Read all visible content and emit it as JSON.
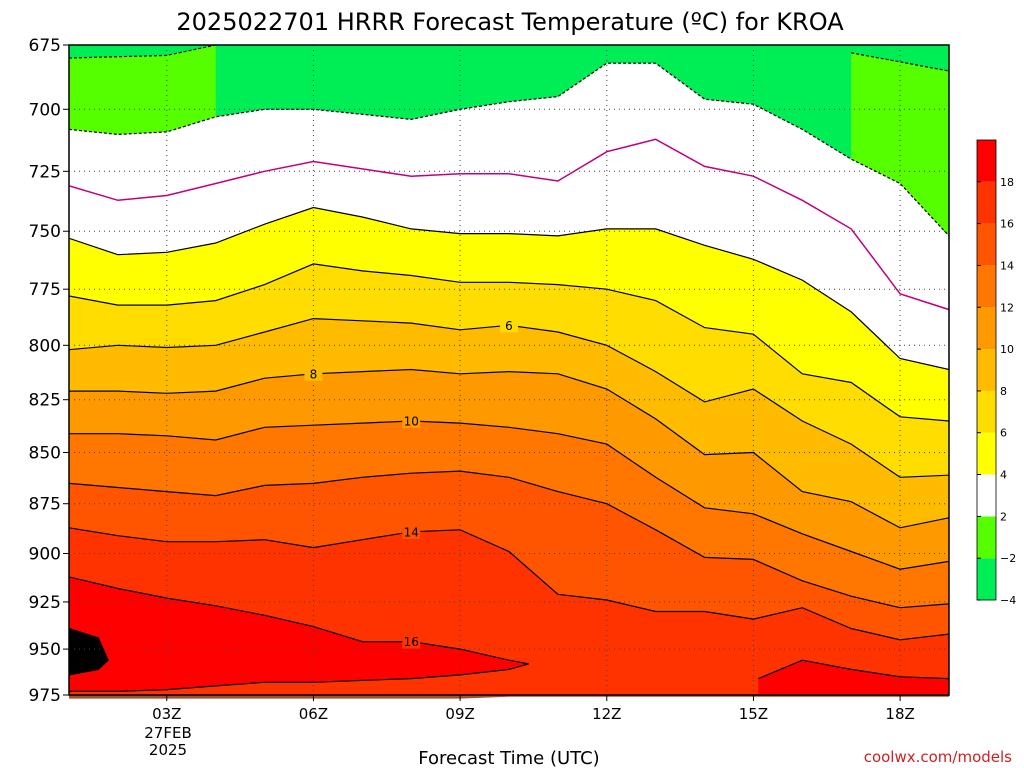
{
  "chart_data": {
    "type": "heatmap",
    "title": "2025022701 HRRR Forecast Temperature (ºC) for KROA",
    "xlabel": "Forecast Time (UTC)",
    "ylabel": "",
    "credit": "coolwx.com/models",
    "x_ticks": [
      {
        "hour": 3,
        "label": "03Z"
      },
      {
        "hour": 6,
        "label": "06Z"
      },
      {
        "hour": 9,
        "label": "09Z"
      },
      {
        "hour": 12,
        "label": "12Z"
      },
      {
        "hour": 15,
        "label": "15Z"
      },
      {
        "hour": 18,
        "label": "18Z"
      }
    ],
    "date_label": [
      "27FEB",
      "2025"
    ],
    "xlim": [
      1,
      19
    ],
    "y_ticks": [
      675,
      700,
      725,
      750,
      775,
      800,
      825,
      850,
      875,
      900,
      925,
      950,
      975
    ],
    "ylim": [
      975,
      675
    ],
    "y_scale": "log-pressure",
    "grid": true,
    "colorbar": {
      "position": "right",
      "bounds": [
        -6,
        -4,
        -2,
        2,
        4,
        6,
        8,
        10,
        12,
        14,
        16,
        18,
        20
      ],
      "labels": [
        "18",
        "16",
        "14",
        "12",
        "10",
        "8",
        "6",
        "4",
        "2",
        "−2",
        "−4"
      ],
      "colors": [
        "#00ee55",
        "#55ff00",
        "#ffffff",
        "#ffff00",
        "#ffdd00",
        "#ffbb00",
        "#ff9900",
        "#ff7700",
        "#ff5500",
        "#ff3300",
        "#ff0000"
      ]
    },
    "isotherm_colors": {
      "zero": "#c0007f",
      "line": "#000000"
    },
    "ground_color": "#a0522d",
    "contours": [
      {
        "level": -4,
        "style": "dashed",
        "points": [
          [
            1,
            680
          ],
          [
            3,
            679
          ],
          [
            4,
            675
          ]
        ]
      },
      {
        "level": -4,
        "style": "dashed",
        "points": [
          [
            17,
            678
          ],
          [
            19,
            685
          ]
        ]
      },
      {
        "level": -2,
        "style": "dashed",
        "points": [
          [
            1,
            708
          ],
          [
            2,
            710
          ],
          [
            3,
            709
          ],
          [
            4,
            703
          ],
          [
            5,
            700
          ],
          [
            6,
            700
          ],
          [
            7,
            702
          ],
          [
            8,
            704
          ],
          [
            9,
            700
          ],
          [
            10,
            697
          ],
          [
            11,
            695
          ],
          [
            12,
            682
          ],
          [
            13,
            682
          ],
          [
            14,
            696
          ],
          [
            15,
            698
          ],
          [
            16,
            708
          ],
          [
            17,
            720
          ],
          [
            18,
            730
          ],
          [
            19,
            752
          ]
        ]
      },
      {
        "level": 0,
        "style": "zero",
        "points": [
          [
            1,
            731
          ],
          [
            2,
            737
          ],
          [
            3,
            735
          ],
          [
            4,
            730
          ],
          [
            5,
            725
          ],
          [
            6,
            721
          ],
          [
            7,
            724
          ],
          [
            8,
            727
          ],
          [
            9,
            726
          ],
          [
            10,
            726
          ],
          [
            11,
            729
          ],
          [
            12,
            717
          ],
          [
            13,
            712
          ],
          [
            14,
            723
          ],
          [
            15,
            727
          ],
          [
            16,
            737
          ],
          [
            17,
            749
          ],
          [
            18,
            777
          ],
          [
            19,
            784
          ]
        ]
      },
      {
        "level": 2,
        "style": "solid",
        "points": [
          [
            1,
            753
          ],
          [
            2,
            760
          ],
          [
            3,
            759
          ],
          [
            4,
            755
          ],
          [
            5,
            747
          ],
          [
            6,
            740
          ],
          [
            7,
            744
          ],
          [
            8,
            749
          ],
          [
            9,
            751
          ],
          [
            10,
            751
          ],
          [
            11,
            752
          ],
          [
            12,
            749
          ],
          [
            13,
            749
          ],
          [
            14,
            756
          ],
          [
            15,
            762
          ],
          [
            16,
            771
          ],
          [
            17,
            785
          ],
          [
            18,
            806
          ],
          [
            19,
            811
          ]
        ]
      },
      {
        "level": 4,
        "style": "solid",
        "points": [
          [
            1,
            778
          ],
          [
            2,
            782
          ],
          [
            3,
            782
          ],
          [
            4,
            780
          ],
          [
            5,
            773
          ],
          [
            6,
            764
          ],
          [
            7,
            767
          ],
          [
            8,
            769
          ],
          [
            9,
            772
          ],
          [
            10,
            772
          ],
          [
            11,
            773
          ],
          [
            12,
            775
          ],
          [
            13,
            780
          ],
          [
            14,
            792
          ],
          [
            15,
            795
          ],
          [
            16,
            813
          ],
          [
            17,
            817
          ],
          [
            18,
            833
          ],
          [
            19,
            835
          ]
        ]
      },
      {
        "level": 6,
        "style": "solid",
        "labelAt": 10,
        "points": [
          [
            1,
            802
          ],
          [
            2,
            800
          ],
          [
            3,
            801
          ],
          [
            4,
            800
          ],
          [
            5,
            794
          ],
          [
            6,
            788
          ],
          [
            7,
            789
          ],
          [
            8,
            790
          ],
          [
            9,
            793
          ],
          [
            10,
            791
          ],
          [
            11,
            794
          ],
          [
            12,
            800
          ],
          [
            13,
            812
          ],
          [
            14,
            826
          ],
          [
            15,
            820
          ],
          [
            16,
            835
          ],
          [
            17,
            846
          ],
          [
            18,
            862
          ],
          [
            19,
            861
          ]
        ]
      },
      {
        "level": 8,
        "style": "solid",
        "labelAt": 6,
        "points": [
          [
            1,
            821
          ],
          [
            2,
            821
          ],
          [
            3,
            822
          ],
          [
            4,
            821
          ],
          [
            5,
            815
          ],
          [
            6,
            813
          ],
          [
            7,
            812
          ],
          [
            8,
            811
          ],
          [
            9,
            813
          ],
          [
            10,
            812
          ],
          [
            11,
            813
          ],
          [
            12,
            820
          ],
          [
            13,
            834
          ],
          [
            14,
            851
          ],
          [
            15,
            850
          ],
          [
            16,
            869
          ],
          [
            17,
            874
          ],
          [
            18,
            887
          ],
          [
            19,
            882
          ]
        ]
      },
      {
        "level": 10,
        "style": "solid",
        "labelAt": 8,
        "points": [
          [
            1,
            841
          ],
          [
            2,
            841
          ],
          [
            3,
            842
          ],
          [
            4,
            844
          ],
          [
            5,
            838
          ],
          [
            6,
            837
          ],
          [
            7,
            836
          ],
          [
            8,
            835
          ],
          [
            9,
            836
          ],
          [
            10,
            838
          ],
          [
            11,
            841
          ],
          [
            12,
            846
          ],
          [
            13,
            862
          ],
          [
            14,
            877
          ],
          [
            15,
            880
          ],
          [
            16,
            890
          ],
          [
            17,
            899
          ],
          [
            18,
            908
          ],
          [
            19,
            904
          ]
        ]
      },
      {
        "level": 12,
        "style": "solid",
        "points": [
          [
            1,
            865
          ],
          [
            2,
            867
          ],
          [
            3,
            869
          ],
          [
            4,
            871
          ],
          [
            5,
            866
          ],
          [
            6,
            865
          ],
          [
            7,
            862
          ],
          [
            8,
            860
          ],
          [
            9,
            859
          ],
          [
            10,
            862
          ],
          [
            11,
            869
          ],
          [
            12,
            875
          ],
          [
            13,
            888
          ],
          [
            14,
            902
          ],
          [
            15,
            903
          ],
          [
            16,
            914
          ],
          [
            17,
            922
          ],
          [
            18,
            928
          ],
          [
            19,
            926
          ]
        ]
      },
      {
        "level": 14,
        "style": "solid",
        "labelAt": 8,
        "points": [
          [
            1,
            887
          ],
          [
            2,
            891
          ],
          [
            3,
            894
          ],
          [
            4,
            894
          ],
          [
            5,
            893
          ],
          [
            6,
            897
          ],
          [
            7,
            893
          ],
          [
            8,
            889
          ],
          [
            9,
            888
          ],
          [
            10,
            899
          ],
          [
            11,
            921
          ],
          [
            12,
            924
          ],
          [
            13,
            930
          ],
          [
            14,
            930
          ],
          [
            15,
            934
          ],
          [
            16,
            928
          ],
          [
            17,
            939
          ],
          [
            18,
            945
          ],
          [
            19,
            942
          ]
        ]
      },
      {
        "level": 16,
        "style": "solid",
        "labelAt": 8,
        "points": [
          [
            1,
            912
          ],
          [
            2,
            918
          ],
          [
            3,
            923
          ],
          [
            4,
            927
          ],
          [
            5,
            932
          ],
          [
            6,
            938
          ],
          [
            7,
            946
          ],
          [
            8,
            946
          ],
          [
            9,
            950
          ],
          [
            10,
            956
          ],
          [
            10.4,
            958
          ],
          [
            10,
            961
          ],
          [
            9,
            964
          ],
          [
            8,
            966
          ],
          [
            7,
            967
          ],
          [
            6,
            968
          ],
          [
            5,
            968
          ],
          [
            4,
            970
          ],
          [
            3,
            972
          ],
          [
            2,
            973
          ],
          [
            1,
            973
          ]
        ]
      },
      {
        "level": 16,
        "style": "solid",
        "points": [
          [
            15.1,
            966
          ],
          [
            16,
            956
          ],
          [
            17,
            961
          ],
          [
            18,
            965
          ],
          [
            19,
            966
          ]
        ]
      },
      {
        "level": 18,
        "style": "solid",
        "points": [
          [
            1,
            939
          ],
          [
            1.6,
            944
          ],
          [
            1.8,
            956
          ],
          [
            1.6,
            961
          ],
          [
            1,
            964
          ]
        ]
      }
    ]
  }
}
